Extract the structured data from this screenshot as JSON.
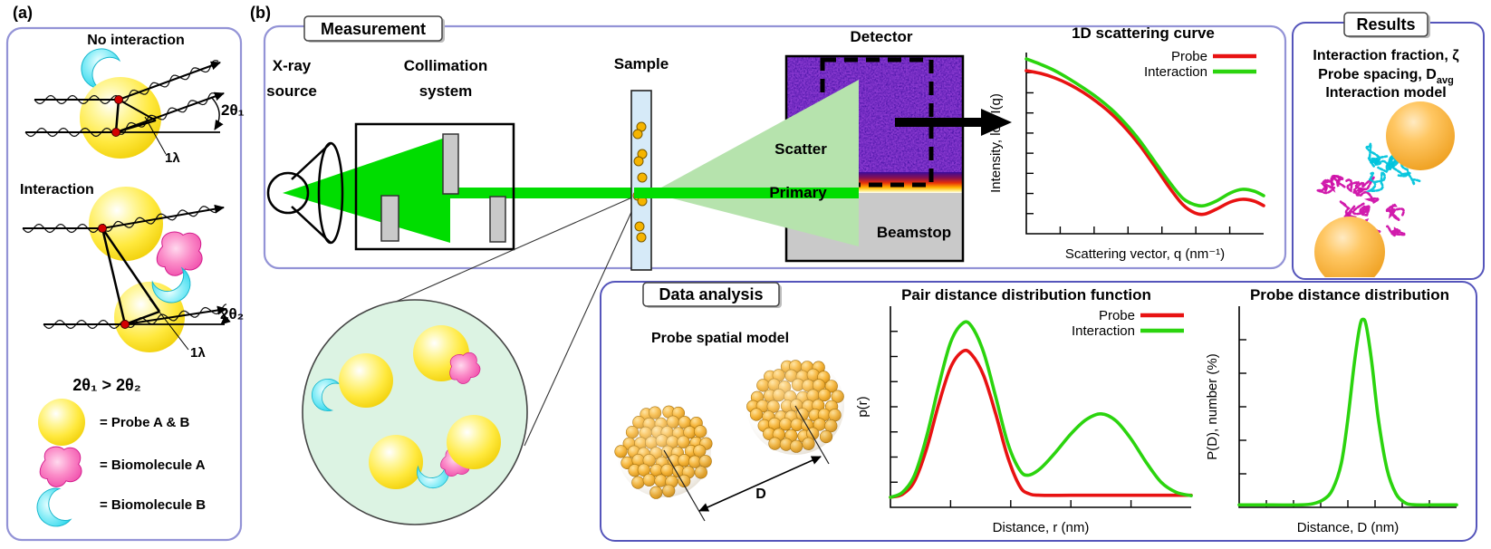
{
  "figure": {
    "panel_a_label": "(a)",
    "panel_b_label": "(b)"
  },
  "panel_a": {
    "no_interaction_title": "No interaction",
    "interaction_title": "Interaction",
    "angle1": "2θ₁",
    "angle2": "2θ₂",
    "wavelength1": "1λ",
    "wavelength2": "1λ",
    "inequality": "2θ₁ > 2θ₂",
    "legend": [
      {
        "symbol": "probe-sphere",
        "label": "= Probe A & B"
      },
      {
        "symbol": "biomolecule-a",
        "label": "= Biomolecule A"
      },
      {
        "symbol": "biomolecule-b",
        "label": "= Biomolecule B"
      }
    ]
  },
  "panel_b": {
    "measurement": {
      "title": "Measurement",
      "xray_source": [
        "X-ray",
        "source"
      ],
      "collimation": [
        "Collimation",
        "system"
      ],
      "sample": "Sample",
      "detector": "Detector",
      "scatter": "Scatter",
      "primary": "Primary",
      "beamstop": "Beamstop"
    },
    "results": {
      "title": "Results",
      "lines": [
        {
          "text": "Interaction fraction, ζ",
          "sub": ""
        },
        {
          "text": "Probe spacing, D",
          "sub": "avg"
        },
        {
          "text": "Interaction model",
          "sub": ""
        }
      ]
    },
    "data_analysis": {
      "title": "Data analysis",
      "spatial_model_title": "Probe spatial model",
      "distance_label": "D"
    }
  },
  "chart_data": [
    {
      "type": "line",
      "title": "1D scattering curve",
      "xlabel": "Scattering vector, q (nm⁻¹)",
      "ylabel": "Intensity, log I(q)",
      "x_ticks": 6,
      "y_ticks": 8,
      "tick_labels_shown": false,
      "legend_position": "top-right",
      "series": [
        {
          "name": "Probe",
          "color": "#e81212",
          "points": [
            [
              0,
              0.9
            ],
            [
              0.06,
              0.885
            ],
            [
              0.12,
              0.86
            ],
            [
              0.18,
              0.825
            ],
            [
              0.24,
              0.78
            ],
            [
              0.3,
              0.725
            ],
            [
              0.36,
              0.66
            ],
            [
              0.42,
              0.58
            ],
            [
              0.48,
              0.485
            ],
            [
              0.54,
              0.375
            ],
            [
              0.6,
              0.26
            ],
            [
              0.66,
              0.16
            ],
            [
              0.71,
              0.115
            ],
            [
              0.75,
              0.108
            ],
            [
              0.8,
              0.135
            ],
            [
              0.86,
              0.175
            ],
            [
              0.91,
              0.19
            ],
            [
              0.96,
              0.18
            ],
            [
              1,
              0.155
            ]
          ]
        },
        {
          "name": "Interaction",
          "color": "#2bd40e",
          "points": [
            [
              0,
              0.965
            ],
            [
              0.06,
              0.935
            ],
            [
              0.12,
              0.9
            ],
            [
              0.18,
              0.855
            ],
            [
              0.24,
              0.805
            ],
            [
              0.3,
              0.75
            ],
            [
              0.36,
              0.685
            ],
            [
              0.42,
              0.605
            ],
            [
              0.48,
              0.51
            ],
            [
              0.54,
              0.4
            ],
            [
              0.6,
              0.29
            ],
            [
              0.66,
              0.195
            ],
            [
              0.71,
              0.16
            ],
            [
              0.75,
              0.155
            ],
            [
              0.8,
              0.18
            ],
            [
              0.86,
              0.225
            ],
            [
              0.91,
              0.245
            ],
            [
              0.96,
              0.235
            ],
            [
              1,
              0.21
            ]
          ]
        }
      ]
    },
    {
      "type": "line",
      "title": "Pair distance distribution function",
      "xlabel": "Distance, r (nm)",
      "ylabel": "p(r)",
      "x_ticks": 4,
      "y_ticks": 7,
      "tick_labels_shown": false,
      "legend_position": "top-right",
      "series": [
        {
          "name": "Probe",
          "color": "#e81212",
          "points": [
            [
              0,
              0.05
            ],
            [
              0.04,
              0.065
            ],
            [
              0.08,
              0.13
            ],
            [
              0.12,
              0.29
            ],
            [
              0.16,
              0.51
            ],
            [
              0.2,
              0.695
            ],
            [
              0.24,
              0.775
            ],
            [
              0.27,
              0.76
            ],
            [
              0.31,
              0.655
            ],
            [
              0.35,
              0.465
            ],
            [
              0.39,
              0.25
            ],
            [
              0.43,
              0.105
            ],
            [
              0.46,
              0.068
            ],
            [
              0.5,
              0.06
            ],
            [
              0.6,
              0.06
            ],
            [
              0.75,
              0.06
            ],
            [
              1,
              0.06
            ]
          ]
        },
        {
          "name": "Interaction",
          "color": "#2bd40e",
          "points": [
            [
              0,
              0.05
            ],
            [
              0.04,
              0.075
            ],
            [
              0.08,
              0.16
            ],
            [
              0.12,
              0.35
            ],
            [
              0.16,
              0.6
            ],
            [
              0.2,
              0.82
            ],
            [
              0.24,
              0.915
            ],
            [
              0.27,
              0.9
            ],
            [
              0.31,
              0.77
            ],
            [
              0.35,
              0.55
            ],
            [
              0.39,
              0.32
            ],
            [
              0.43,
              0.185
            ],
            [
              0.46,
              0.16
            ],
            [
              0.5,
              0.195
            ],
            [
              0.55,
              0.275
            ],
            [
              0.6,
              0.365
            ],
            [
              0.65,
              0.435
            ],
            [
              0.7,
              0.465
            ],
            [
              0.75,
              0.43
            ],
            [
              0.8,
              0.34
            ],
            [
              0.85,
              0.225
            ],
            [
              0.9,
              0.125
            ],
            [
              0.95,
              0.075
            ],
            [
              1,
              0.058
            ]
          ]
        }
      ]
    },
    {
      "type": "line",
      "title": "Probe distance distribution",
      "xlabel": "Distance, D (nm)",
      "ylabel": "P(D), number (%)",
      "x_ticks": 7,
      "y_ticks": 5,
      "tick_labels_shown": false,
      "legend_position": "none",
      "series": [
        {
          "name": "Interaction",
          "color": "#2bd40e",
          "points": [
            [
              0,
              0.012
            ],
            [
              0.15,
              0.012
            ],
            [
              0.28,
              0.012
            ],
            [
              0.34,
              0.018
            ],
            [
              0.39,
              0.04
            ],
            [
              0.43,
              0.09
            ],
            [
              0.47,
              0.22
            ],
            [
              0.5,
              0.44
            ],
            [
              0.53,
              0.72
            ],
            [
              0.555,
              0.9
            ],
            [
              0.57,
              0.935
            ],
            [
              0.585,
              0.9
            ],
            [
              0.61,
              0.72
            ],
            [
              0.64,
              0.44
            ],
            [
              0.68,
              0.19
            ],
            [
              0.72,
              0.07
            ],
            [
              0.76,
              0.025
            ],
            [
              0.8,
              0.013
            ],
            [
              0.9,
              0.012
            ],
            [
              1,
              0.012
            ]
          ]
        }
      ]
    }
  ],
  "colors": {
    "panel_border_light": "#9393d6",
    "panel_border_dark": "#5555bb",
    "probe_yellow": "#ffe93e",
    "biomolecule_pink": "#f45cb2",
    "biomolecule_cyan": "#42dcef",
    "beam_green": "#00dd00",
    "scatter_pale_green": "#b6e3ad",
    "detector_purple": "#3a0b9c",
    "beamstop_gray": "#c9c9c9",
    "sample_blue": "#d6eaf8",
    "magnifier_mint": "#dcf3e3",
    "gold_nanoparticle": "#f2a81f",
    "results_orange": "#f4a92c",
    "probe_curve_red": "#e81212",
    "interaction_curve_green": "#2bd40e"
  }
}
